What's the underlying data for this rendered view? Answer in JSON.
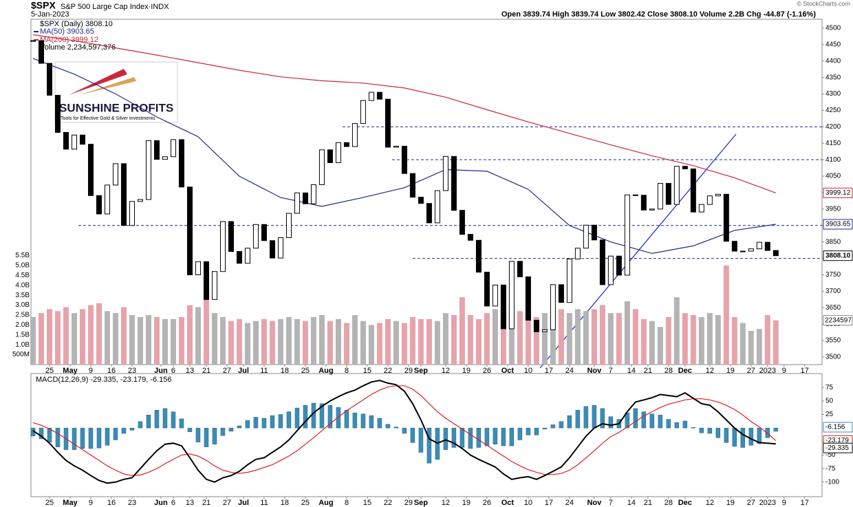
{
  "chart_data": [
    {
      "type": "candlestick",
      "title": "$SPX",
      "subtitle": "S&P 500 Large Cap Index·INDX",
      "date": "5-Jan-2023",
      "quote": "Open 3839.74 High 3839.74 Low 3802.42 Close 3808.10 Volume 2.2B Chg -44.87 (-1.16%)",
      "copyright": "© StockCharts.com",
      "logo": {
        "title": "SUNSHINE PROFITS",
        "tagline": "Tools for Effective Gold & Silver Investments"
      },
      "price_legend": "$SPX (Daily) 3808.10",
      "volume_legend": "Volume 2,234,597,376",
      "x": [
        0,
        2,
        4,
        6,
        8,
        10,
        12,
        14,
        16,
        18,
        20,
        22,
        24,
        26,
        28,
        30,
        32,
        34,
        36,
        38,
        40,
        42,
        44,
        46,
        48,
        50,
        52,
        54,
        56,
        58,
        60,
        62,
        64,
        66,
        68,
        70,
        72,
        74,
        76,
        78,
        80,
        82,
        84,
        86,
        88,
        90,
        92,
        94,
        96,
        98,
        100,
        102,
        104,
        106,
        108,
        110,
        112,
        114,
        116,
        118,
        120,
        122,
        124,
        126,
        128,
        130,
        132,
        134,
        136,
        138,
        140,
        142,
        144,
        146,
        148,
        150,
        152,
        154,
        156,
        158,
        160,
        162,
        164,
        166,
        168,
        170,
        172,
        174,
        176,
        178,
        180
      ],
      "close": [
        4462,
        4393,
        4296,
        4183,
        4132,
        4175,
        4147,
        3991,
        3935,
        4023,
        4088,
        3900,
        3973,
        3979,
        4158,
        4101,
        4109,
        4161,
        4017,
        3750,
        3790,
        3675,
        3760,
        3912,
        3821,
        3785,
        3831,
        3903,
        3854,
        3801,
        3863,
        3937,
        3999,
        3966,
        4024,
        4130,
        4091,
        4152,
        4140,
        4210,
        4280,
        4305,
        4284,
        4138,
        4141,
        4058,
        3986,
        3967,
        3908,
        4006,
        4110,
        3946,
        3873,
        3855,
        3758,
        3655,
        3719,
        3586,
        3791,
        3744,
        3612,
        3577,
        3583,
        3720,
        3666,
        3798,
        3831,
        3901,
        3856,
        3720,
        3807,
        3749,
        3993,
        3992,
        3947,
        3950,
        4028,
        3964,
        4080,
        4072,
        3941,
        3964,
        3990,
        3995,
        3852,
        3822,
        3822,
        3829,
        3849,
        3824,
        3808.1
      ],
      "volume": [
        2.4,
        2.6,
        2.8,
        2.7,
        2.9,
        2.6,
        2.8,
        3.0,
        3.1,
        2.7,
        2.6,
        2.9,
        2.5,
        2.4,
        2.5,
        2.4,
        2.3,
        2.3,
        2.4,
        3.0,
        2.9,
        3.6,
        2.6,
        2.4,
        2.2,
        2.3,
        2.1,
        2.2,
        2.3,
        2.2,
        2.3,
        2.4,
        2.3,
        2.2,
        2.4,
        2.5,
        2.2,
        2.3,
        2.1,
        2.5,
        2.2,
        2.0,
        2.1,
        2.3,
        2.2,
        2.1,
        2.4,
        2.3,
        2.3,
        2.2,
        2.6,
        2.5,
        3.4,
        2.5,
        2.3,
        2.6,
        2.8,
        2.7,
        2.9,
        2.7,
        2.5,
        2.4,
        2.6,
        2.7,
        2.8,
        2.6,
        2.8,
        2.7,
        2.8,
        3.0,
        2.6,
        2.6,
        3.2,
        2.8,
        2.3,
        2.2,
        1.9,
        2.4,
        3.4,
        2.6,
        2.5,
        2.4,
        2.6,
        2.5,
        5.0,
        2.4,
        2.1,
        1.7,
        1.8,
        2.5,
        2.234597376
      ],
      "up_color": "#ffffff",
      "down_color": "#000000",
      "volume_up_color": "#b4b4b4",
      "volume_down_color": "#e6a3aa",
      "lines": [
        {
          "name": "MA(50) 3903.65",
          "color": "#1c2a8c",
          "x": [
            0,
            10,
            20,
            30,
            40,
            50,
            60,
            70,
            80,
            90,
            100,
            110,
            120,
            130,
            140,
            150,
            160,
            170,
            180
          ],
          "values": [
            4408,
            4360,
            4300,
            4230,
            4170,
            4050,
            3985,
            3958,
            3985,
            4015,
            4070,
            4065,
            4010,
            3900,
            3850,
            3815,
            3838,
            3885,
            3903.65
          ]
        },
        {
          "name": "MA(200) 3999.12",
          "color": "#c8283c",
          "x": [
            0,
            10,
            20,
            30,
            40,
            50,
            60,
            70,
            80,
            90,
            100,
            110,
            120,
            130,
            140,
            150,
            160,
            170,
            180
          ],
          "values": [
            4480,
            4462,
            4440,
            4418,
            4395,
            4372,
            4352,
            4340,
            4333,
            4318,
            4290,
            4252,
            4215,
            4180,
            4145,
            4112,
            4082,
            4045,
            3999.12
          ]
        }
      ],
      "reference_levels": [
        {
          "value": 4200,
          "x": 75
        },
        {
          "value": 4100,
          "x": 87
        },
        {
          "value": 3900,
          "x": 11
        },
        {
          "value": 3800,
          "x": 92
        }
      ],
      "price_labels": [
        {
          "value": 3999.12,
          "label": "3999.12",
          "color": "#c8283c"
        },
        {
          "value": 3903.65,
          "label": "3903.65",
          "color": "#1c2a8c"
        },
        {
          "value": 3808.1,
          "label": "3808.10",
          "color": "#000000"
        }
      ],
      "volume_label": {
        "value": 2.234597376,
        "label": "2234597"
      },
      "xlim": [
        -0.5,
        191.2
      ],
      "xticks": [
        {
          "value": 4,
          "label": "25"
        },
        {
          "value": 9,
          "label": "May"
        },
        {
          "value": 14,
          "label": "9"
        },
        {
          "value": 19,
          "label": "16"
        },
        {
          "value": 24,
          "label": "23"
        },
        {
          "value": 31,
          "label": "Jun"
        },
        {
          "value": 34,
          "label": "6"
        },
        {
          "value": 38,
          "label": "13"
        },
        {
          "value": 42,
          "label": "21"
        },
        {
          "value": 47,
          "label": "27"
        },
        {
          "value": 51,
          "label": "Jul"
        },
        {
          "value": 56,
          "label": "11"
        },
        {
          "value": 61,
          "label": "18"
        },
        {
          "value": 66,
          "label": "25"
        },
        {
          "value": 71,
          "label": "Aug"
        },
        {
          "value": 76,
          "label": "8"
        },
        {
          "value": 81,
          "label": "15"
        },
        {
          "value": 86,
          "label": "22"
        },
        {
          "value": 91,
          "label": "29"
        },
        {
          "value": 94,
          "label": "Sep"
        },
        {
          "value": 100,
          "label": "12"
        },
        {
          "value": 105,
          "label": "19"
        },
        {
          "value": 110,
          "label": "26"
        },
        {
          "value": 115,
          "label": "Oct"
        },
        {
          "value": 120,
          "label": "10"
        },
        {
          "value": 125,
          "label": "17"
        },
        {
          "value": 130,
          "label": "24"
        },
        {
          "value": 136,
          "label": "Nov"
        },
        {
          "value": 140,
          "label": "7"
        },
        {
          "value": 145,
          "label": "14"
        },
        {
          "value": 149,
          "label": "21"
        },
        {
          "value": 154,
          "label": "28"
        },
        {
          "value": 158,
          "label": "Dec"
        },
        {
          "value": 164,
          "label": "12"
        },
        {
          "value": 169,
          "label": "19"
        },
        {
          "value": 174,
          "label": "27"
        },
        {
          "value": 178,
          "label": "2023"
        },
        {
          "value": 182,
          "label": "9"
        },
        {
          "value": 187,
          "label": "17"
        }
      ],
      "ylim": [
        3477,
        4527
      ],
      "yticks": [
        3500,
        3550,
        3600,
        3650,
        3700,
        3750,
        3800,
        3850,
        3900,
        3950,
        4000,
        4050,
        4100,
        4150,
        4200,
        4250,
        4300,
        4350,
        4400,
        4450,
        4500
      ],
      "volume_lim": [
        0,
        17.43
      ],
      "volume_ticks": [
        {
          "value": 0.5,
          "label": "500M"
        },
        {
          "value": 1.0,
          "label": "1.0B"
        },
        {
          "value": 1.5,
          "label": "1.5B"
        },
        {
          "value": 2.0,
          "label": "2.0B"
        },
        {
          "value": 2.5,
          "label": "2.5B"
        },
        {
          "value": 3.0,
          "label": "3.0B"
        },
        {
          "value": 3.5,
          "label": "3.5B"
        },
        {
          "value": 4.0,
          "label": "4.0B"
        },
        {
          "value": 4.5,
          "label": "4.5B"
        },
        {
          "value": 5.0,
          "label": "5.0B"
        },
        {
          "value": 5.5,
          "label": "5.5B"
        }
      ]
    },
    {
      "type": "line",
      "legend": "MACD(12,26,9) -29.335, -23.179, -6.156",
      "x": [
        0,
        2,
        4,
        6,
        8,
        10,
        12,
        14,
        16,
        18,
        20,
        22,
        24,
        26,
        28,
        30,
        32,
        34,
        36,
        38,
        40,
        42,
        44,
        46,
        48,
        50,
        52,
        54,
        56,
        58,
        60,
        62,
        64,
        66,
        68,
        70,
        72,
        74,
        76,
        78,
        80,
        82,
        84,
        86,
        88,
        90,
        92,
        94,
        96,
        98,
        100,
        102,
        104,
        106,
        108,
        110,
        112,
        114,
        116,
        118,
        120,
        122,
        124,
        126,
        128,
        130,
        132,
        134,
        136,
        138,
        140,
        142,
        144,
        146,
        148,
        150,
        152,
        154,
        156,
        158,
        160,
        162,
        164,
        166,
        168,
        170,
        172,
        174,
        176,
        178,
        180
      ],
      "series": [
        {
          "color": "#000000",
          "values": [
            -5,
            -15,
            -28,
            -45,
            -60,
            -70,
            -78,
            -88,
            -97,
            -102,
            -100,
            -95,
            -92,
            -75,
            -58,
            -42,
            -30,
            -28,
            -33,
            -55,
            -78,
            -95,
            -100,
            -92,
            -88,
            -80,
            -68,
            -58,
            -55,
            -45,
            -35,
            -22,
            -5,
            12,
            28,
            40,
            50,
            58,
            65,
            70,
            78,
            85,
            88,
            83,
            80,
            68,
            45,
            15,
            -20,
            -28,
            -22,
            -28,
            -38,
            -50,
            -58,
            -65,
            -72,
            -85,
            -95,
            -92,
            -90,
            -95,
            -88,
            -80,
            -72,
            -55,
            -35,
            -15,
            0,
            8,
            5,
            8,
            30,
            48,
            52,
            56,
            62,
            60,
            58,
            65,
            55,
            45,
            42,
            30,
            15,
            0,
            -12,
            -20,
            -27,
            -28,
            -29.335
          ]
        },
        {
          "color": "#e01e1e",
          "values": [
            10,
            5,
            -2,
            -10,
            -20,
            -30,
            -40,
            -50,
            -60,
            -70,
            -78,
            -85,
            -88,
            -87,
            -82,
            -75,
            -66,
            -58,
            -50,
            -48,
            -52,
            -60,
            -70,
            -78,
            -82,
            -84,
            -82,
            -78,
            -73,
            -68,
            -60,
            -52,
            -42,
            -30,
            -18,
            -5,
            8,
            20,
            32,
            42,
            52,
            62,
            70,
            76,
            78,
            78,
            72,
            60,
            45,
            30,
            18,
            8,
            -2,
            -12,
            -22,
            -32,
            -42,
            -52,
            -62,
            -70,
            -77,
            -82,
            -86,
            -86,
            -84,
            -78,
            -68,
            -55,
            -42,
            -28,
            -16,
            -8,
            2,
            12,
            22,
            30,
            38,
            44,
            48,
            52,
            54,
            54,
            52,
            48,
            42,
            34,
            24,
            12,
            2,
            -10,
            -23.179
          ]
        }
      ],
      "histogram": {
        "color": "#3a8db8",
        "values": [
          -15,
          -20,
          -26,
          -35,
          -40,
          -40,
          -38,
          -38,
          -37,
          -32,
          -22,
          -10,
          -4,
          12,
          24,
          33,
          36,
          30,
          17,
          -7,
          -26,
          -35,
          -30,
          -14,
          -6,
          4,
          14,
          20,
          18,
          23,
          25,
          30,
          37,
          42,
          46,
          45,
          42,
          38,
          33,
          28,
          26,
          23,
          18,
          7,
          2,
          -10,
          -27,
          -45,
          -65,
          -58,
          -40,
          -36,
          -36,
          -38,
          -36,
          -33,
          -30,
          -33,
          -33,
          -22,
          -13,
          -13,
          -2,
          6,
          12,
          23,
          33,
          40,
          42,
          36,
          21,
          16,
          28,
          36,
          30,
          26,
          24,
          16,
          10,
          13,
          1,
          -9,
          -10,
          -18,
          -27,
          -34,
          -36,
          -32,
          -29,
          -18,
          -6.156
        ]
      },
      "value_labels": [
        {
          "value": -6.156,
          "label": "-6.156",
          "color": "#3a8db8"
        },
        {
          "value": -23.179,
          "label": "-23.179",
          "color": "#e01e1e"
        },
        {
          "value": -29.335,
          "label": "-29.335",
          "color": "#000000"
        }
      ],
      "xlim": [
        -0.5,
        191.2
      ],
      "xticks": [
        {
          "value": 4,
          "label": "25"
        },
        {
          "value": 9,
          "label": "May"
        },
        {
          "value": 14,
          "label": "9"
        },
        {
          "value": 19,
          "label": "16"
        },
        {
          "value": 24,
          "label": "23"
        },
        {
          "value": 31,
          "label": "Jun"
        },
        {
          "value": 34,
          "label": "6"
        },
        {
          "value": 38,
          "label": "13"
        },
        {
          "value": 42,
          "label": "21"
        },
        {
          "value": 47,
          "label": "27"
        },
        {
          "value": 51,
          "label": "Jul"
        },
        {
          "value": 56,
          "label": "11"
        },
        {
          "value": 61,
          "label": "18"
        },
        {
          "value": 66,
          "label": "25"
        },
        {
          "value": 71,
          "label": "Aug"
        },
        {
          "value": 76,
          "label": "8"
        },
        {
          "value": 81,
          "label": "15"
        },
        {
          "value": 86,
          "label": "22"
        },
        {
          "value": 91,
          "label": "29"
        },
        {
          "value": 94,
          "label": "Sep"
        },
        {
          "value": 100,
          "label": "12"
        },
        {
          "value": 105,
          "label": "19"
        },
        {
          "value": 110,
          "label": "26"
        },
        {
          "value": 115,
          "label": "Oct"
        },
        {
          "value": 120,
          "label": "10"
        },
        {
          "value": 125,
          "label": "17"
        },
        {
          "value": 130,
          "label": "24"
        },
        {
          "value": 136,
          "label": "Nov"
        },
        {
          "value": 140,
          "label": "7"
        },
        {
          "value": 145,
          "label": "14"
        },
        {
          "value": 149,
          "label": "21"
        },
        {
          "value": 154,
          "label": "28"
        },
        {
          "value": 158,
          "label": "Dec"
        },
        {
          "value": 164,
          "label": "12"
        },
        {
          "value": 169,
          "label": "19"
        },
        {
          "value": 174,
          "label": "27"
        },
        {
          "value": 178,
          "label": "2023"
        },
        {
          "value": 182,
          "label": "9"
        },
        {
          "value": 187,
          "label": "17"
        }
      ],
      "ylim": [
        -127,
        100.7
      ],
      "yticks": [
        -100,
        -75,
        -50,
        -25,
        25,
        50,
        75
      ]
    }
  ]
}
